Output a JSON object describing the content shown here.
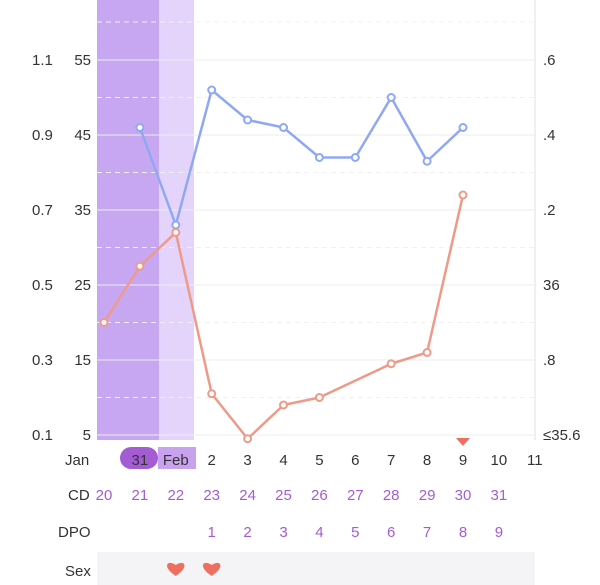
{
  "chart_data": {
    "type": "line",
    "left_axis_outer_ticks": [
      "1.1",
      "0.9",
      "0.7",
      "0.5",
      "0.3",
      "0.1"
    ],
    "left_axis_inner_ticks": [
      "55",
      "45",
      "35",
      "25",
      "15",
      "5"
    ],
    "right_axis_ticks": [
      ".6",
      ".4",
      ".2",
      "36",
      ".8",
      "≤35.6"
    ],
    "y_range_inner": [
      5,
      60
    ],
    "month_label": "Jan",
    "date_labels": [
      "",
      "31",
      "Feb",
      "2",
      "3",
      "4",
      "5",
      "6",
      "7",
      "8",
      "9",
      "10",
      "11"
    ],
    "highlighted_dates": [
      "31",
      "Feb"
    ],
    "cd_label": "CD",
    "cd_values": [
      "20",
      "21",
      "22",
      "23",
      "24",
      "25",
      "26",
      "27",
      "28",
      "29",
      "30",
      "31"
    ],
    "dpo_label": "DPO",
    "dpo_values": [
      "",
      "",
      "",
      "1",
      "2",
      "3",
      "4",
      "5",
      "6",
      "7",
      "8",
      "9"
    ],
    "sex_label": "Sex",
    "sex_days": [
      2,
      3
    ],
    "series": [
      {
        "color": "#8fa8f2",
        "values": [
          null,
          46,
          33,
          51,
          47,
          46,
          42,
          42,
          50,
          41.5,
          46,
          null
        ]
      },
      {
        "color": "#ef9a88",
        "values": [
          20,
          27.5,
          32,
          10.5,
          4.5,
          9,
          10,
          null,
          14.5,
          16,
          37,
          null
        ]
      }
    ],
    "marker_day": 10,
    "colors": {
      "dark_band": "#c8a7f2",
      "light_band": "#e4d4fb",
      "pill": "#a45cd4",
      "cd_text": "#a45cd4",
      "heart": "#ee6f5f",
      "sex_row_bg": "#f4f4f6"
    }
  }
}
